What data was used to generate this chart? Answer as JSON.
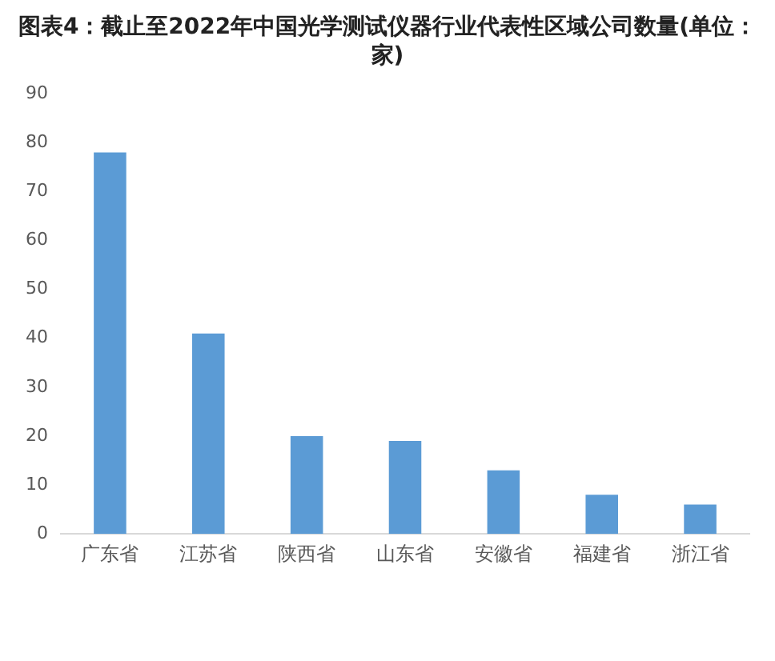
{
  "chart_data": {
    "type": "bar",
    "title": "图表4：截止至2022年中国光学测试仪器行业代表性区域公司数量(单位：家)",
    "categories": [
      "广东省",
      "江苏省",
      "陕西省",
      "山东省",
      "安徽省",
      "福建省",
      "浙江省"
    ],
    "values": [
      78,
      41,
      20,
      19,
      13,
      8,
      6
    ],
    "color": "#5b9bd5",
    "ylim": [
      0,
      90
    ],
    "yticks": [
      0,
      10,
      20,
      30,
      40,
      50,
      60,
      70,
      80,
      90
    ],
    "grid": false,
    "legend": false
  }
}
